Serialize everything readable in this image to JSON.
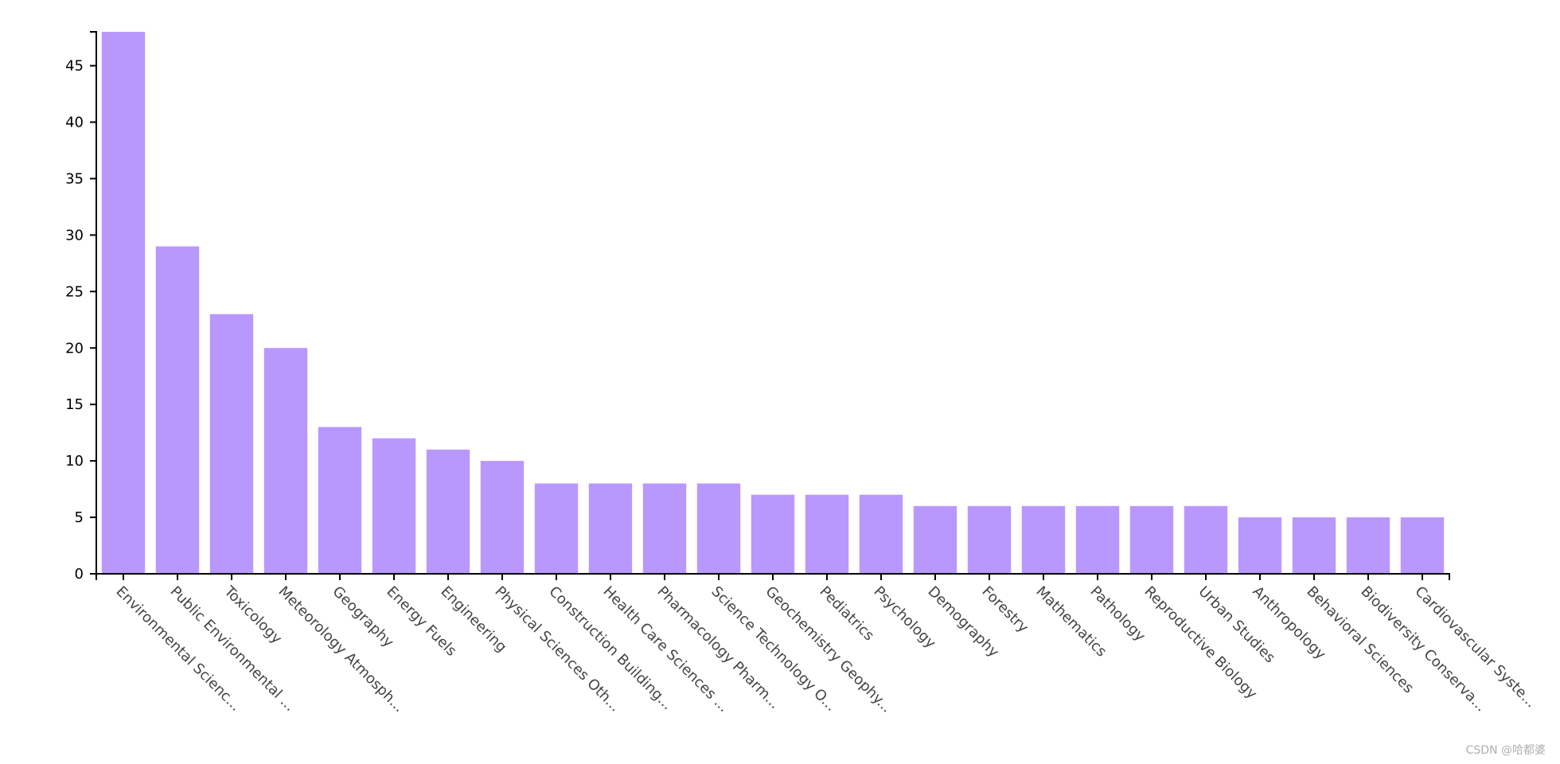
{
  "chart_data": {
    "type": "bar",
    "categories": [
      "Environmental Scienc...",
      "Public Environmental ...",
      "Toxicology",
      "Meteorology Atmosph...",
      "Geography",
      "Energy Fuels",
      "Engineering",
      "Physical Sciences Oth...",
      "Construction Building...",
      "Health Care Sciences ...",
      "Pharmacology Pharm...",
      "Science Technology O...",
      "Geochemistry Geophy...",
      "Pediatrics",
      "Psychology",
      "Demography",
      "Forestry",
      "Mathematics",
      "Pathology",
      "Reproductive Biology",
      "Urban Studies",
      "Anthropology",
      "Behavioral Sciences",
      "Biodiversity Conserva...",
      "Cardiovascular Syste..."
    ],
    "values": [
      48,
      29,
      23,
      20,
      13,
      12,
      11,
      10,
      8,
      8,
      8,
      8,
      7,
      7,
      7,
      6,
      6,
      6,
      6,
      6,
      6,
      5,
      5,
      5,
      5
    ],
    "yticks": [
      0,
      5,
      10,
      15,
      20,
      25,
      30,
      35,
      40,
      45
    ],
    "ylim": [
      0,
      48
    ],
    "bar_color": "#b998fd",
    "grid": false,
    "legend": "none"
  },
  "watermark": "CSDN @哈都婆"
}
